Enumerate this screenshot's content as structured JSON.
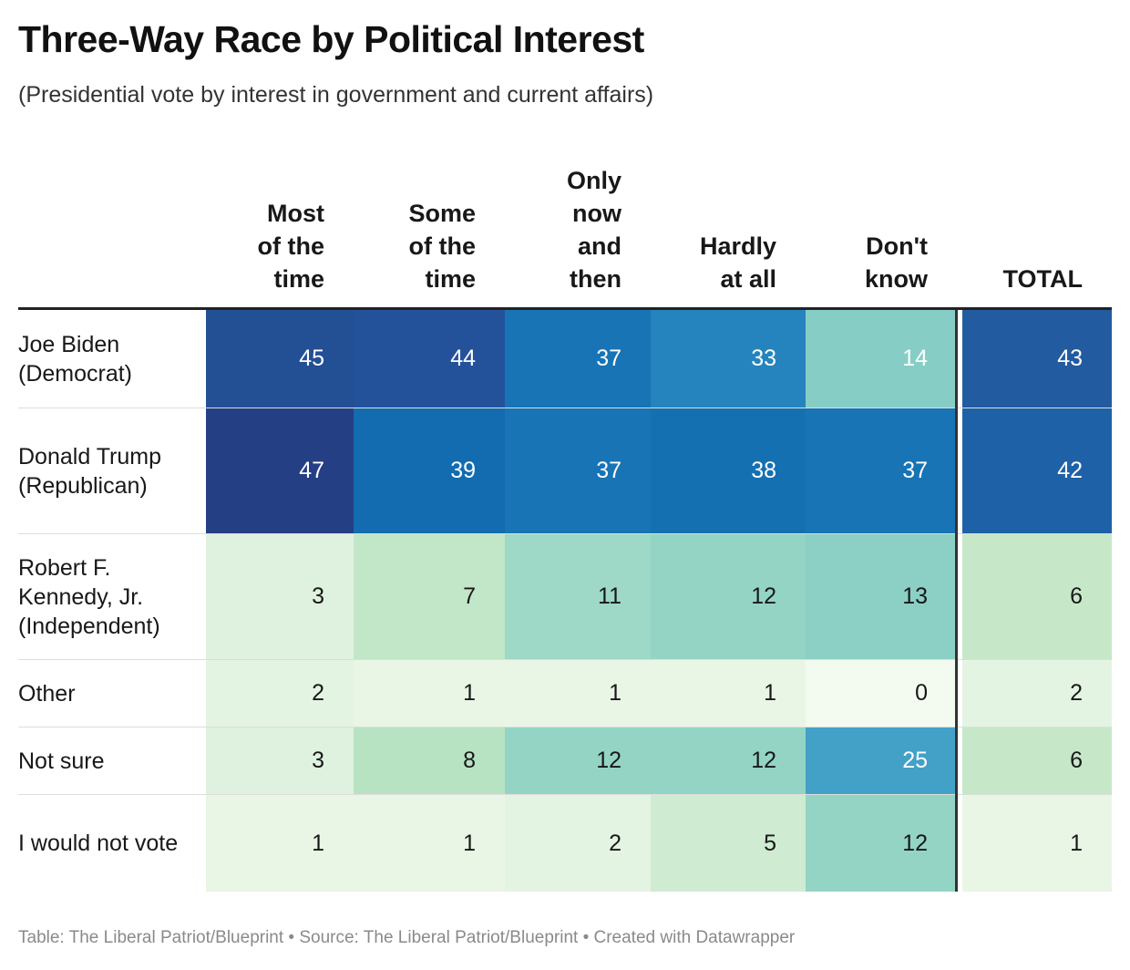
{
  "title": "Three-Way Race by Political Interest",
  "subtitle": "(Presidential vote by interest in government and current affairs)",
  "footer": "Table: The Liberal Patriot/Blueprint • Source: The Liberal Patriot/Blueprint • Created with Datawrapper",
  "chart_data": {
    "type": "table",
    "columns": [
      "Most\nof the\ntime",
      "Some\nof the\ntime",
      "Only\nnow\nand\nthen",
      "Hardly\nat all",
      "Don't\nknow",
      "TOTAL"
    ],
    "rows": [
      {
        "label": "Joe Biden (Democrat)",
        "values": [
          45,
          44,
          37,
          33,
          14,
          43
        ]
      },
      {
        "label": "Donald Trump (Republican)",
        "values": [
          47,
          39,
          37,
          38,
          37,
          42
        ]
      },
      {
        "label": "Robert F. Kennedy, Jr. (Independent)",
        "values": [
          3,
          7,
          11,
          12,
          13,
          6
        ]
      },
      {
        "label": "Other",
        "values": [
          2,
          1,
          1,
          1,
          0,
          2
        ]
      },
      {
        "label": "Not sure",
        "values": [
          3,
          8,
          12,
          12,
          25,
          6
        ]
      },
      {
        "label": "I would not vote",
        "values": [
          1,
          1,
          2,
          5,
          12,
          1
        ]
      }
    ],
    "colors": {
      "47": "#253f85",
      "45": "#234f94",
      "44": "#24529a",
      "43": "#225b9f",
      "42": "#1f61a6",
      "39": "#126caf",
      "38": "#1570b2",
      "37": "#1874b4",
      "33": "#2584bd",
      "25": "#43a1c8",
      "14": "#86cec5",
      "13": "#8bcfc5",
      "12": "#93d4c5",
      "11": "#9ed8c6",
      "8": "#b8e3c2",
      "7": "#c1e6c8",
      "6": "#c6e8c9",
      "5": "#cfebd2",
      "3": "#dff2df",
      "2": "#e4f4e2",
      "1": "#e9f6e5",
      "0": "#f3faef"
    }
  }
}
